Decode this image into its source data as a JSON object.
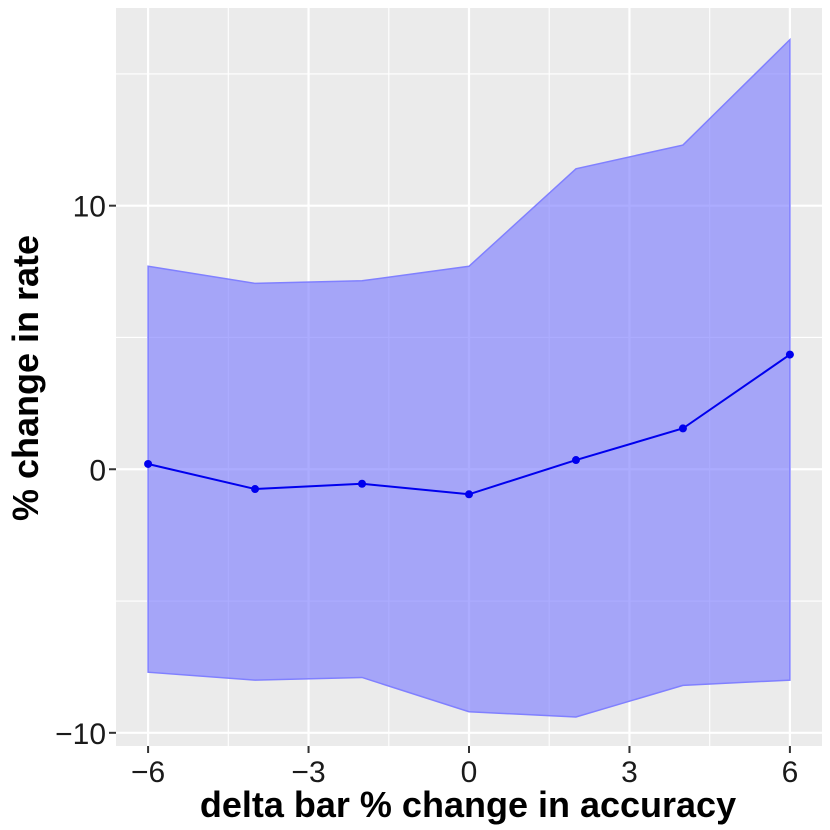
{
  "chart_data": {
    "type": "line",
    "title": "",
    "xlabel": "delta bar % change in accuracy",
    "ylabel": "% change in rate",
    "xlim": [
      -6.6,
      6.6
    ],
    "ylim": [
      -10.5,
      17.5
    ],
    "x_ticks": [
      -6,
      -3,
      0,
      3,
      6
    ],
    "x_tick_labels": [
      "−6",
      "−3",
      "0",
      "3",
      "6"
    ],
    "y_ticks": [
      -10,
      0,
      10
    ],
    "y_tick_labels": [
      "−10",
      "0",
      "10"
    ],
    "grid": true,
    "legend": "none",
    "x": [
      -6,
      -4,
      -2,
      0,
      2,
      4,
      6
    ],
    "series": [
      {
        "values": [
          0.2,
          -0.75,
          -0.55,
          -0.95,
          0.35,
          1.55,
          4.35
        ],
        "lower": [
          -7.7,
          -8.0,
          -7.9,
          -9.2,
          -9.4,
          -8.2,
          -8.0
        ],
        "upper": [
          7.7,
          7.05,
          7.15,
          7.7,
          11.4,
          12.3,
          16.3
        ],
        "line_color": "#0000ee",
        "band_color": "#8080ff"
      }
    ],
    "panel_background": "#ebebeb",
    "grid_color": "#ffffff"
  }
}
